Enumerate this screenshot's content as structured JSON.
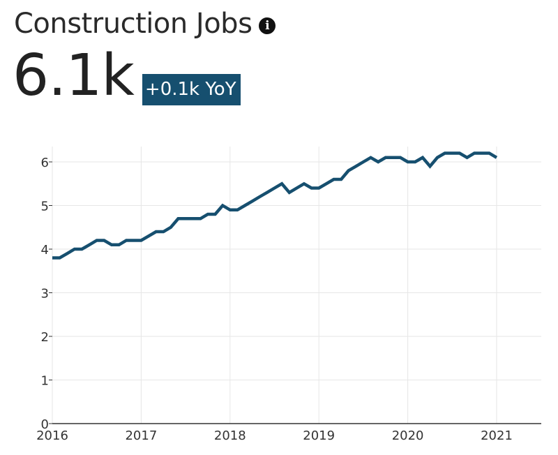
{
  "header": {
    "title": "Construction Jobs",
    "info_icon": "info-icon",
    "value": "6.1k",
    "yoy": "+0.1k YoY"
  },
  "colors": {
    "line": "#164f6f",
    "badge": "#164f6f",
    "grid": "#e6e6e6"
  },
  "chart_data": {
    "type": "line",
    "title": "",
    "xlabel": "",
    "ylabel": "",
    "xlim": [
      2016,
      2021.5
    ],
    "ylim": [
      0,
      6.3
    ],
    "grid": true,
    "x_ticks": [
      "2016",
      "2017",
      "2018",
      "2019",
      "2020",
      "2021"
    ],
    "y_ticks": [
      "0",
      "1",
      "2",
      "3",
      "4",
      "5",
      "6"
    ],
    "series": [
      {
        "x": [
          2016.0,
          2016.083,
          2016.167,
          2016.25,
          2016.333,
          2016.417,
          2016.5,
          2016.583,
          2016.667,
          2016.75,
          2016.833,
          2016.917,
          2017.0,
          2017.083,
          2017.167,
          2017.25,
          2017.333,
          2017.417,
          2017.5,
          2017.583,
          2017.667,
          2017.75,
          2017.833,
          2017.917,
          2018.0,
          2018.083,
          2018.167,
          2018.25,
          2018.333,
          2018.417,
          2018.5,
          2018.583,
          2018.667,
          2018.75,
          2018.833,
          2018.917,
          2019.0,
          2019.083,
          2019.167,
          2019.25,
          2019.333,
          2019.417,
          2019.5,
          2019.583,
          2019.667,
          2019.75,
          2019.833,
          2019.917,
          2020.0,
          2020.083,
          2020.167,
          2020.25,
          2020.333,
          2020.417,
          2020.5,
          2020.583,
          2020.667,
          2020.75,
          2020.833,
          2020.917,
          2021.0
        ],
        "y": [
          3.8,
          3.8,
          3.9,
          4.0,
          4.0,
          4.1,
          4.2,
          4.2,
          4.1,
          4.1,
          4.2,
          4.2,
          4.2,
          4.3,
          4.4,
          4.4,
          4.5,
          4.7,
          4.7,
          4.7,
          4.7,
          4.8,
          4.8,
          5.0,
          4.9,
          4.9,
          5.0,
          5.1,
          5.2,
          5.3,
          5.4,
          5.5,
          5.3,
          5.4,
          5.5,
          5.4,
          5.4,
          5.5,
          5.6,
          5.6,
          5.8,
          5.9,
          6.0,
          6.1,
          6.0,
          6.1,
          6.1,
          6.1,
          6.0,
          6.0,
          6.1,
          5.9,
          6.1,
          6.2,
          6.2,
          6.2,
          6.1,
          6.2,
          6.2,
          6.2,
          6.1
        ]
      }
    ]
  }
}
